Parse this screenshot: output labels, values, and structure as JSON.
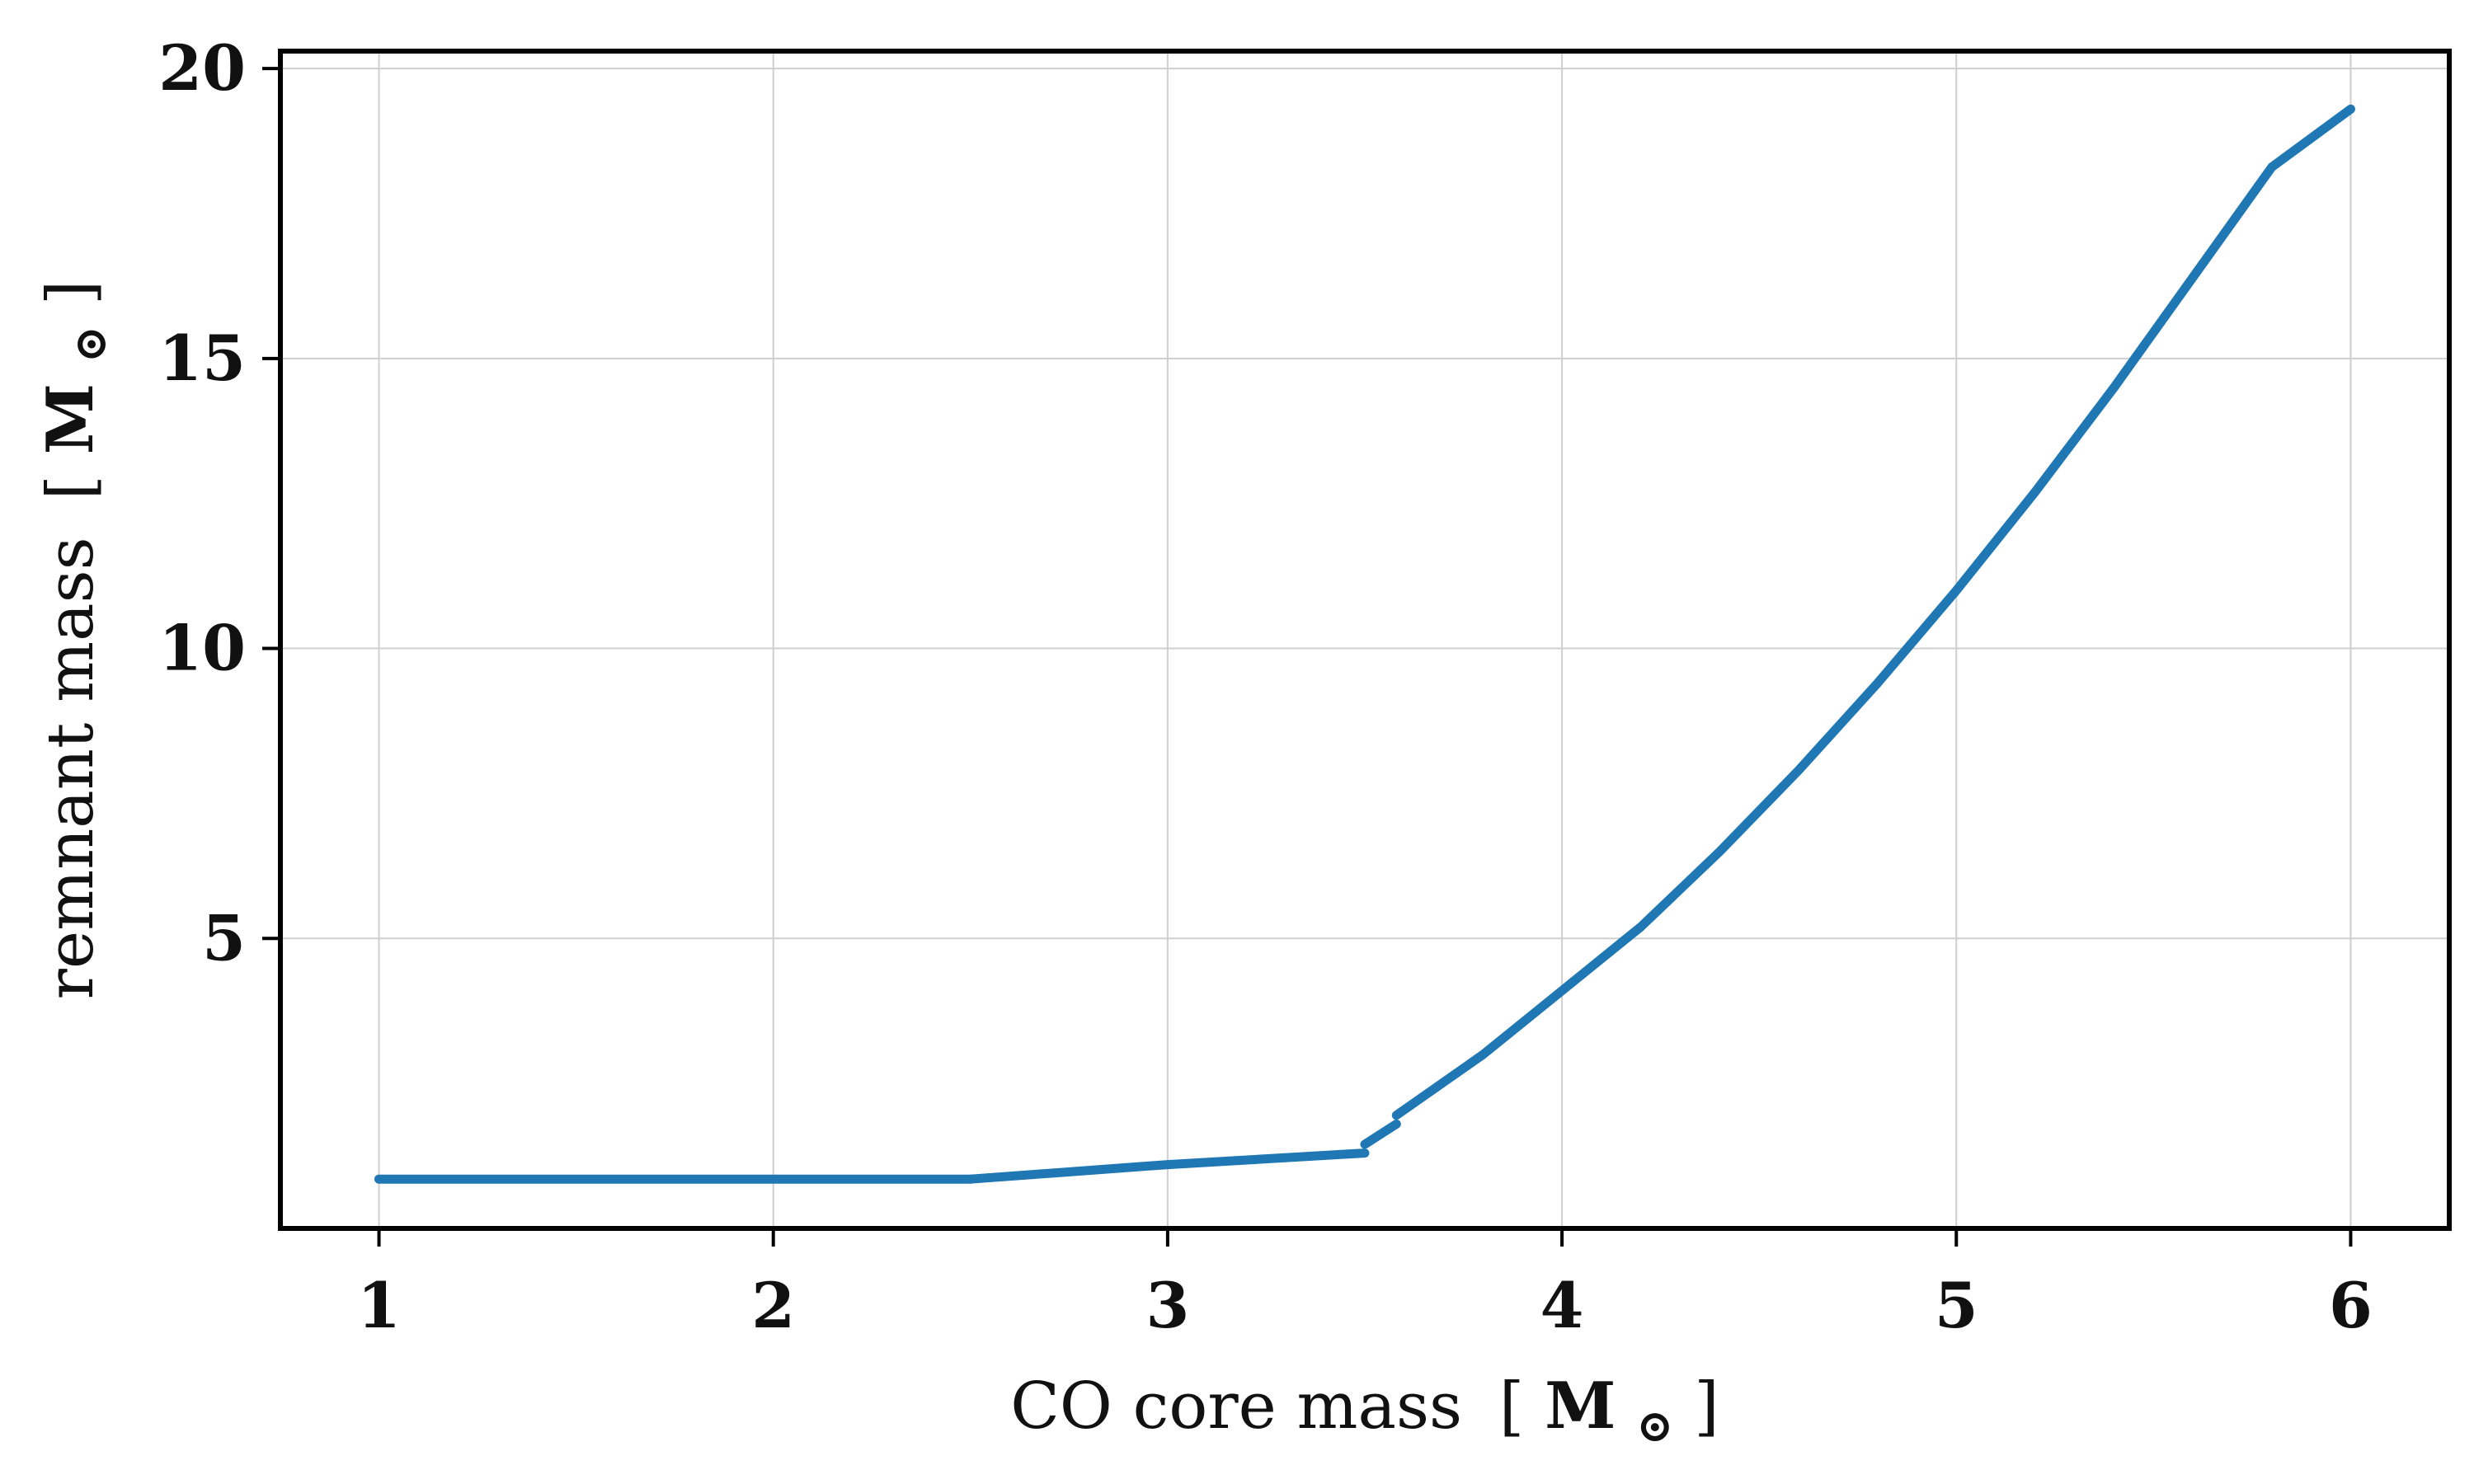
{
  "chart_data": {
    "type": "line",
    "xlabel": "CO core mass",
    "ylabel": "remnant mass",
    "unit_open": "[",
    "unit_symbol": "M",
    "unit_subscript": "⊙",
    "unit_close": "]",
    "xlim": [
      0.75,
      6.25
    ],
    "ylim": [
      0.0,
      20.3
    ],
    "xticks": [
      1,
      2,
      3,
      4,
      5,
      6
    ],
    "yticks": [
      5,
      10,
      15,
      20
    ],
    "grid": true,
    "series": [
      {
        "color": "#1f77b4",
        "segments": [
          {
            "x": [
              1.0,
              1.5,
              2.0,
              2.5
            ],
            "y": [
              0.85,
              0.85,
              0.85,
              0.85
            ]
          },
          {
            "x": [
              2.5,
              3.0,
              3.5
            ],
            "y": [
              0.85,
              1.1,
              1.3
            ]
          },
          {
            "x": [
              3.5,
              3.58
            ],
            "y": [
              1.45,
              1.8
            ]
          },
          {
            "x": [
              3.58,
              3.8,
              4.0,
              4.2,
              4.4,
              4.6,
              4.8,
              5.0,
              5.2,
              5.4,
              5.6,
              5.8,
              6.0
            ],
            "y": [
              1.95,
              3.0,
              4.1,
              5.2,
              6.5,
              7.9,
              9.4,
              11.0,
              12.7,
              14.5,
              16.4,
              18.3,
              19.3
            ]
          }
        ]
      }
    ]
  }
}
